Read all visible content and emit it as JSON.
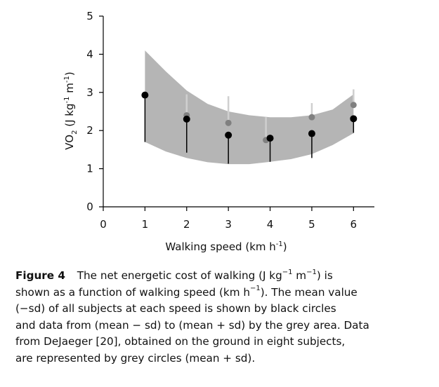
{
  "chart_data": {
    "type": "scatter",
    "xlabel": "Walking speed (km h",
    "xlabel_sup": "-1",
    "xlabel_end": ")",
    "ylabel": "VO",
    "ylabel_sub": "2",
    "ylabel_units": " (J kg",
    "ylabel_sup1": "-1",
    "ylabel_m": " m",
    "ylabel_sup2": "-1",
    "ylabel_end": ")",
    "xlim": [
      0,
      6.5
    ],
    "ylim": [
      0,
      5
    ],
    "x_ticks": [
      0,
      1,
      2,
      3,
      4,
      5,
      6
    ],
    "y_ticks": [
      0,
      1,
      2,
      3,
      4,
      5
    ],
    "grid": false,
    "band": {
      "x": [
        1,
        1.5,
        2,
        2.5,
        3,
        3.5,
        4,
        4.5,
        5,
        5.5,
        6
      ],
      "upper": [
        4.1,
        3.55,
        3.05,
        2.7,
        2.5,
        2.4,
        2.35,
        2.35,
        2.4,
        2.55,
        2.95
      ],
      "lower": [
        1.7,
        1.45,
        1.28,
        1.17,
        1.12,
        1.12,
        1.18,
        1.25,
        1.38,
        1.62,
        1.93
      ],
      "color": "#b5b5b5"
    },
    "series": [
      {
        "x": [
          1,
          2,
          3,
          4,
          5,
          6
        ],
        "values": [
          2.93,
          2.3,
          1.88,
          1.8,
          1.92,
          2.31
        ],
        "error_low": [
          1.7,
          1.42,
          1.13,
          1.18,
          1.28,
          1.94
        ],
        "color": "#000000"
      },
      {
        "x": [
          2,
          3,
          3.9,
          5,
          6
        ],
        "values": [
          2.4,
          2.2,
          1.75,
          2.35,
          2.67
        ],
        "error_high": [
          2.95,
          2.9,
          2.35,
          2.72,
          3.08
        ],
        "color": "#808080"
      }
    ]
  },
  "caption": {
    "label": "Figure 4",
    "lines": [
      "The net energetic cost of walking (J kg",
      " m",
      ") is",
      "shown as a function of walking speed (km h",
      "). The mean value",
      "(−sd) of all subjects at each speed is shown by black circles",
      "and data from (mean − sd) to (mean + sd) by the grey area. Data",
      "from DeJaeger [20], obtained on the ground in eight subjects,",
      "are represented by grey circles (mean + sd)."
    ],
    "sup": "−1"
  }
}
